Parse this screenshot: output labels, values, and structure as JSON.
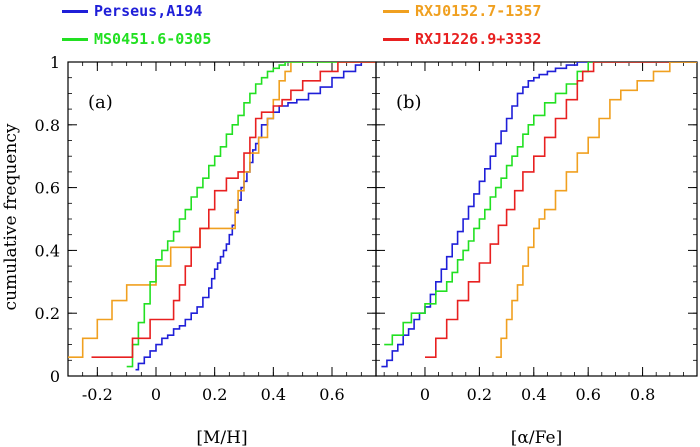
{
  "chart_data": [
    {
      "type": "line",
      "panel_label": "(a)",
      "xlabel": "[M/H]",
      "ylabel": "cumulative frequency",
      "xlim": [
        -0.3,
        0.75
      ],
      "ylim": [
        0,
        1
      ],
      "xticks": [
        "-0.2",
        "0",
        "0.2",
        "0.4",
        "0.6"
      ],
      "xtick_values": [
        -0.2,
        0,
        0.2,
        0.4,
        0.6
      ],
      "yticks": [
        "0",
        "0.2",
        "0.4",
        "0.6",
        "0.8",
        "1"
      ],
      "ytick_values": [
        0,
        0.2,
        0.4,
        0.6,
        0.8,
        1
      ],
      "series": [
        {
          "name": "Perseus,A194",
          "color": "#1f1fd8",
          "x": [
            -0.07,
            -0.06,
            -0.04,
            -0.02,
            0.0,
            0.02,
            0.04,
            0.06,
            0.08,
            0.1,
            0.12,
            0.14,
            0.16,
            0.18,
            0.19,
            0.2,
            0.21,
            0.22,
            0.23,
            0.24,
            0.25,
            0.26,
            0.27,
            0.28,
            0.29,
            0.3,
            0.31,
            0.32,
            0.33,
            0.34,
            0.35,
            0.36,
            0.38,
            0.4,
            0.42,
            0.45,
            0.48,
            0.52,
            0.56,
            0.6,
            0.64,
            0.68,
            0.7
          ],
          "y": [
            0.02,
            0.04,
            0.06,
            0.08,
            0.1,
            0.12,
            0.13,
            0.15,
            0.16,
            0.18,
            0.2,
            0.22,
            0.25,
            0.28,
            0.31,
            0.34,
            0.36,
            0.38,
            0.4,
            0.42,
            0.45,
            0.48,
            0.52,
            0.56,
            0.6,
            0.62,
            0.65,
            0.68,
            0.72,
            0.74,
            0.76,
            0.8,
            0.82,
            0.84,
            0.86,
            0.87,
            0.88,
            0.9,
            0.92,
            0.95,
            0.97,
            0.99,
            1.0
          ]
        },
        {
          "name": "RXJ0152.7-1357",
          "color": "#f0a020",
          "x": [
            -0.3,
            -0.25,
            -0.2,
            -0.15,
            -0.1,
            -0.05,
            0.0,
            0.05,
            0.1,
            0.15,
            0.2,
            0.25,
            0.27,
            0.28,
            0.3,
            0.32,
            0.35,
            0.38,
            0.4,
            0.42,
            0.44,
            0.46
          ],
          "y": [
            0.06,
            0.12,
            0.18,
            0.24,
            0.29,
            0.29,
            0.35,
            0.41,
            0.41,
            0.47,
            0.47,
            0.47,
            0.53,
            0.59,
            0.65,
            0.71,
            0.76,
            0.82,
            0.88,
            0.94,
            0.97,
            1.0
          ]
        },
        {
          "name": "MS0451.6-0305",
          "color": "#22e022",
          "x": [
            -0.1,
            -0.08,
            -0.06,
            -0.04,
            -0.02,
            0.0,
            0.02,
            0.04,
            0.06,
            0.08,
            0.1,
            0.12,
            0.14,
            0.16,
            0.18,
            0.2,
            0.22,
            0.24,
            0.26,
            0.28,
            0.3,
            0.32,
            0.34,
            0.36,
            0.38,
            0.4,
            0.42,
            0.44
          ],
          "y": [
            0.03,
            0.1,
            0.17,
            0.23,
            0.3,
            0.37,
            0.4,
            0.43,
            0.46,
            0.5,
            0.53,
            0.57,
            0.6,
            0.63,
            0.67,
            0.7,
            0.73,
            0.77,
            0.8,
            0.83,
            0.87,
            0.9,
            0.93,
            0.95,
            0.97,
            0.98,
            0.99,
            1.0
          ]
        },
        {
          "name": "RXJ1226.9+3332",
          "color": "#e82020",
          "x": [
            -0.22,
            -0.08,
            -0.02,
            0.06,
            0.08,
            0.1,
            0.12,
            0.15,
            0.18,
            0.2,
            0.24,
            0.28,
            0.3,
            0.32,
            0.34,
            0.36,
            0.4,
            0.43,
            0.46,
            0.5,
            0.56,
            0.62
          ],
          "y": [
            0.06,
            0.12,
            0.18,
            0.24,
            0.29,
            0.35,
            0.41,
            0.47,
            0.53,
            0.59,
            0.63,
            0.65,
            0.71,
            0.76,
            0.82,
            0.84,
            0.86,
            0.88,
            0.91,
            0.94,
            0.97,
            1.0
          ]
        }
      ]
    },
    {
      "type": "line",
      "panel_label": "(b)",
      "xlabel": "[α/Fe]",
      "ylabel": "",
      "xlim": [
        -0.18,
        1.0
      ],
      "ylim": [
        0,
        1
      ],
      "xticks": [
        "0",
        "0.2",
        "0.4",
        "0.6",
        "0.8"
      ],
      "xtick_values": [
        0,
        0.2,
        0.4,
        0.6,
        0.8
      ],
      "yticks": [
        "0",
        "0.2",
        "0.4",
        "0.6",
        "0.8",
        "1"
      ],
      "ytick_values": [
        0,
        0.2,
        0.4,
        0.6,
        0.8,
        1
      ],
      "series": [
        {
          "name": "Perseus,A194",
          "color": "#1f1fd8",
          "x": [
            -0.16,
            -0.14,
            -0.12,
            -0.1,
            -0.08,
            -0.06,
            -0.04,
            -0.02,
            0.0,
            0.02,
            0.04,
            0.06,
            0.08,
            0.1,
            0.12,
            0.14,
            0.16,
            0.18,
            0.2,
            0.22,
            0.24,
            0.26,
            0.28,
            0.3,
            0.32,
            0.34,
            0.36,
            0.38,
            0.4,
            0.42,
            0.45,
            0.48,
            0.52,
            0.56
          ],
          "y": [
            0.03,
            0.05,
            0.08,
            0.1,
            0.13,
            0.15,
            0.18,
            0.2,
            0.22,
            0.26,
            0.3,
            0.34,
            0.38,
            0.42,
            0.46,
            0.5,
            0.54,
            0.58,
            0.62,
            0.66,
            0.7,
            0.74,
            0.78,
            0.82,
            0.86,
            0.9,
            0.92,
            0.94,
            0.95,
            0.96,
            0.97,
            0.98,
            0.99,
            1.0
          ]
        },
        {
          "name": "MS0451.6-0305",
          "color": "#22e022",
          "x": [
            -0.15,
            -0.12,
            -0.08,
            -0.05,
            0.0,
            0.04,
            0.08,
            0.1,
            0.12,
            0.14,
            0.16,
            0.18,
            0.2,
            0.22,
            0.24,
            0.26,
            0.28,
            0.3,
            0.32,
            0.34,
            0.36,
            0.38,
            0.4,
            0.44,
            0.48,
            0.52,
            0.56,
            0.6
          ],
          "y": [
            0.1,
            0.13,
            0.17,
            0.2,
            0.23,
            0.27,
            0.3,
            0.33,
            0.37,
            0.4,
            0.43,
            0.47,
            0.5,
            0.53,
            0.57,
            0.6,
            0.63,
            0.67,
            0.7,
            0.73,
            0.77,
            0.8,
            0.83,
            0.87,
            0.9,
            0.93,
            0.97,
            1.0
          ]
        },
        {
          "name": "RXJ1226.9+3332",
          "color": "#e82020",
          "x": [
            0.0,
            0.04,
            0.08,
            0.12,
            0.16,
            0.2,
            0.24,
            0.27,
            0.3,
            0.33,
            0.36,
            0.4,
            0.44,
            0.48,
            0.52,
            0.56,
            0.58,
            0.62,
            0.66
          ],
          "y": [
            0.06,
            0.12,
            0.18,
            0.24,
            0.3,
            0.36,
            0.42,
            0.48,
            0.53,
            0.59,
            0.65,
            0.7,
            0.76,
            0.82,
            0.88,
            0.94,
            0.97,
            1.0,
            1.0
          ]
        },
        {
          "name": "RXJ0152.7-1357",
          "color": "#f0a020",
          "x": [
            0.26,
            0.28,
            0.3,
            0.32,
            0.34,
            0.36,
            0.38,
            0.4,
            0.42,
            0.44,
            0.48,
            0.52,
            0.56,
            0.6,
            0.64,
            0.68,
            0.72,
            0.78,
            0.84,
            0.9,
            0.95
          ],
          "y": [
            0.06,
            0.12,
            0.18,
            0.24,
            0.29,
            0.35,
            0.41,
            0.47,
            0.5,
            0.53,
            0.59,
            0.65,
            0.71,
            0.76,
            0.82,
            0.88,
            0.91,
            0.94,
            0.97,
            1.0,
            1.0
          ]
        }
      ]
    }
  ]
}
